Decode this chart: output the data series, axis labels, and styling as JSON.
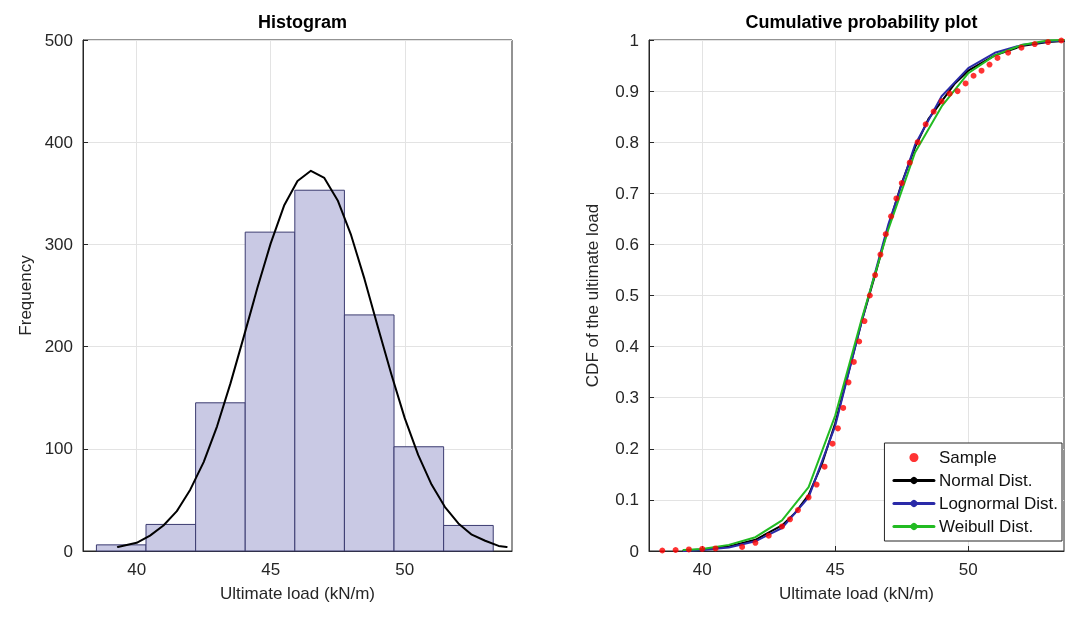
{
  "chart_data": [
    {
      "type": "histogram",
      "title": "Histogram",
      "xlabel": "Ultimate load (kN/m)",
      "ylabel": "Frequency",
      "xlim": [
        38,
        54
      ],
      "xticks": [
        40,
        45,
        50
      ],
      "ylim": [
        0,
        500
      ],
      "yticks": [
        0,
        100,
        200,
        300,
        400,
        500
      ],
      "grid": true,
      "legend": false,
      "series": [
        {
          "color": "#c9c9e4",
          "bins": [
            38.5,
            40.35,
            42.2,
            44.05,
            45.9,
            47.75,
            49.6,
            51.45,
            53.3
          ],
          "values": [
            6,
            26,
            145,
            312,
            353,
            231,
            102,
            25
          ]
        },
        {
          "type": "line",
          "color": "#000000",
          "marker": "none",
          "line_style": "solid",
          "x": [
            39.3,
            40,
            40.5,
            41,
            41.5,
            42,
            42.5,
            43,
            43.5,
            44,
            44.5,
            45,
            45.5,
            46,
            46.5,
            47,
            47.5,
            48,
            48.5,
            49,
            49.5,
            50,
            50.5,
            51,
            51.5,
            52,
            52.5,
            53,
            53.5,
            53.8
          ],
          "values": [
            4,
            8,
            15,
            25,
            39,
            60,
            87,
            122,
            164,
            210,
            257,
            301,
            338,
            362,
            372,
            365,
            343,
            309,
            266,
            219,
            173,
            130,
            94,
            65,
            43,
            27,
            16,
            10,
            5,
            4
          ]
        }
      ]
    },
    {
      "type": "line",
      "title": "Cumulative probability plot",
      "xlabel": "Ultimate load (kN/m)",
      "ylabel": "CDF of the ultimate load",
      "xlim": [
        38,
        53.6
      ],
      "xticks": [
        40,
        45,
        50
      ],
      "ylim": [
        0,
        1
      ],
      "yticks": [
        0,
        0.1,
        0.2,
        0.3,
        0.4,
        0.5,
        0.6,
        0.7,
        0.8,
        0.9,
        1
      ],
      "grid": true,
      "legend": "bottom right",
      "series": [
        {
          "type": "scatter",
          "name": "Sample",
          "color": "#ff0000",
          "marker": "circle",
          "x": [
            38.5,
            39,
            39.5,
            40,
            40.5,
            41.5,
            42,
            42.5,
            43,
            43.3,
            43.6,
            44,
            44.3,
            44.6,
            44.9,
            45.1,
            45.3,
            45.5,
            45.7,
            45.9,
            46.1,
            46.3,
            46.5,
            46.7,
            46.9,
            47.1,
            47.3,
            47.5,
            47.8,
            48.1,
            48.4,
            48.7,
            49,
            49.3,
            49.6,
            49.9,
            50.2,
            50.5,
            50.8,
            51.1,
            51.5,
            52,
            52.5,
            53,
            53.5
          ],
          "values": [
            0.001,
            0.002,
            0.003,
            0.004,
            0.005,
            0.008,
            0.016,
            0.03,
            0.048,
            0.062,
            0.08,
            0.105,
            0.13,
            0.165,
            0.21,
            0.24,
            0.28,
            0.33,
            0.37,
            0.41,
            0.45,
            0.5,
            0.54,
            0.58,
            0.62,
            0.655,
            0.69,
            0.72,
            0.76,
            0.8,
            0.835,
            0.86,
            0.88,
            0.895,
            0.9,
            0.915,
            0.93,
            0.94,
            0.952,
            0.965,
            0.975,
            0.985,
            0.992,
            0.996,
            0.999
          ]
        },
        {
          "name": "Normal Dist.",
          "color": "#000000",
          "marker": "none",
          "line_style": "solid",
          "x": [
            39.3,
            40,
            41,
            42,
            43,
            43.5,
            44,
            44.5,
            45,
            45.5,
            46,
            46.5,
            47,
            47.5,
            48,
            48.5,
            49,
            49.5,
            50,
            51,
            52,
            53,
            53.6
          ],
          "values": [
            0.001,
            0.003,
            0.009,
            0.022,
            0.05,
            0.075,
            0.11,
            0.17,
            0.25,
            0.35,
            0.45,
            0.54,
            0.635,
            0.72,
            0.79,
            0.845,
            0.88,
            0.915,
            0.94,
            0.97,
            0.988,
            0.996,
            0.998
          ]
        },
        {
          "name": "Lognormal Dist.",
          "color": "#2a2aa8",
          "marker": "none",
          "line_style": "solid",
          "x": [
            39.3,
            40,
            41,
            42,
            43,
            44,
            45,
            46,
            47,
            48,
            49,
            50,
            51,
            52,
            53,
            53.6
          ],
          "values": [
            0.0,
            0.002,
            0.007,
            0.019,
            0.045,
            0.105,
            0.245,
            0.45,
            0.64,
            0.795,
            0.89,
            0.945,
            0.975,
            0.99,
            0.997,
            0.999
          ]
        },
        {
          "name": "Weibull Dist.",
          "color": "#22bb22",
          "marker": "none",
          "line_style": "solid",
          "x": [
            39.3,
            40,
            41,
            42,
            43,
            44,
            45,
            46,
            47,
            48,
            49,
            50,
            51,
            52,
            53,
            53.6
          ],
          "values": [
            0.002,
            0.004,
            0.012,
            0.027,
            0.06,
            0.125,
            0.265,
            0.455,
            0.63,
            0.78,
            0.87,
            0.935,
            0.97,
            0.99,
            0.999,
            1.0
          ]
        }
      ]
    }
  ]
}
